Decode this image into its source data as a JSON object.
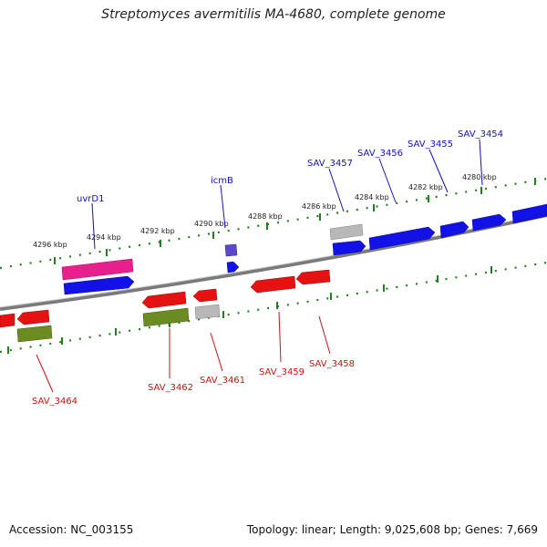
{
  "title": "Streptomyces avermitilis MA-4680, complete genome",
  "footer": {
    "accession": "Accession: NC_003155",
    "topology": "Topology: linear; Length: 9,025,608 bp; Genes: 7,669"
  },
  "colors": {
    "forward_label": "#1010c0",
    "reverse_label": "#d01010",
    "forward_gene": "#1010e0",
    "reverse_gene": "#e01010",
    "rna_gene": "#5040c0",
    "pseudo_gene": "#b0b0b0",
    "pink_gene": "#e0208c",
    "olive_gene": "#6a8a20",
    "scale_tick": "#208020",
    "backbone": "#808080"
  },
  "scale_labels": [
    "4296 kbp",
    "4294 kbp",
    "4292 kbp",
    "4290 kbp",
    "4288 kbp",
    "4286 kbp",
    "4284 kbp",
    "4282 kbp",
    "4280 kbp"
  ],
  "forward_labels": [
    "uvrD1",
    "icmB",
    "SAV_3457",
    "SAV_3456",
    "SAV_3455",
    "SAV_3454"
  ],
  "reverse_labels": [
    "SAV_3464",
    "SAV_3462",
    "SAV_3461",
    "SAV_3459",
    "SAV_3458"
  ]
}
